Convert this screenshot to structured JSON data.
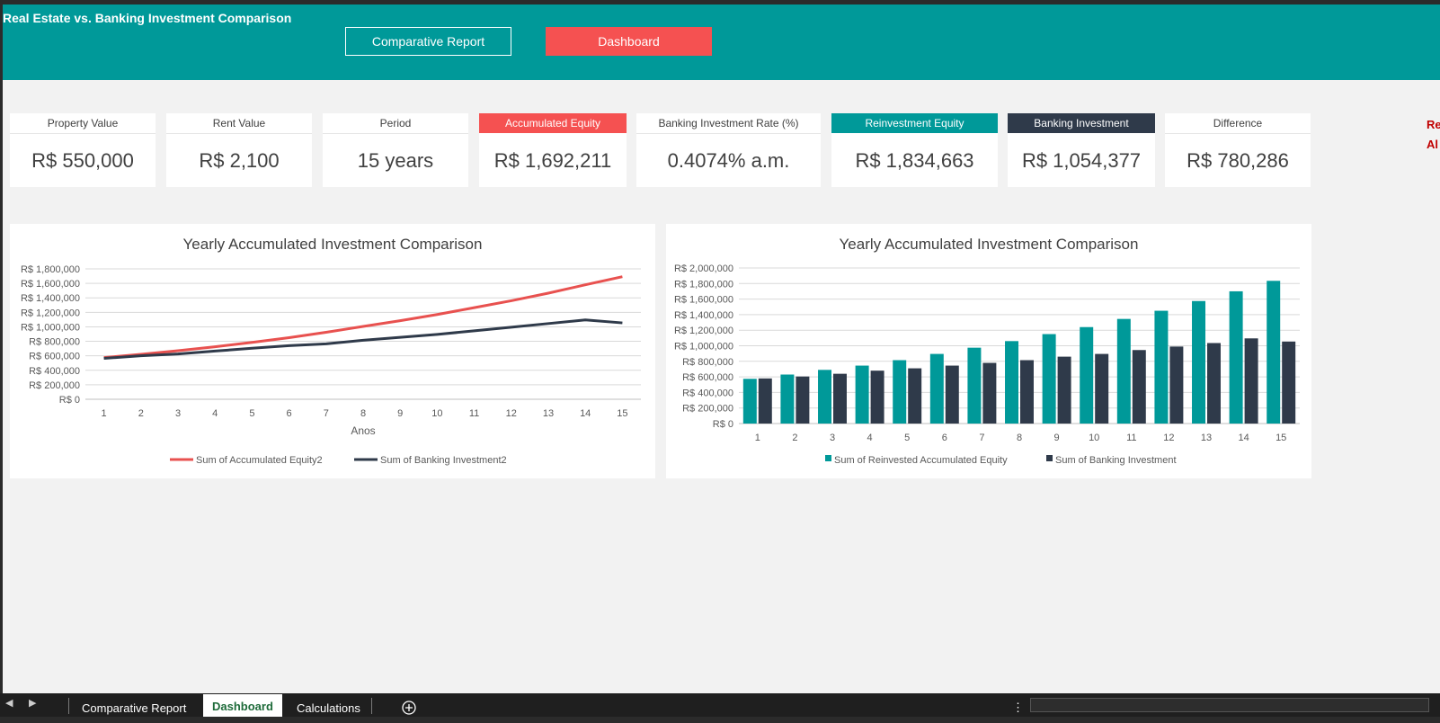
{
  "title": "Real Estate vs. Banking Investment Comparison",
  "nav": {
    "report": "Comparative Report",
    "dashboard": "Dashboard"
  },
  "kpis": [
    {
      "label": "Property Value",
      "value": "R$ 550,000"
    },
    {
      "label": "Rent Value",
      "value": "R$ 2,100"
    },
    {
      "label": "Period",
      "value": "15 years"
    },
    {
      "label": "Accumulated Equity",
      "value": "R$ 1,692,211"
    },
    {
      "label": "Banking Investment Rate (%)",
      "value": "0.4074% a.m."
    },
    {
      "label": "Reinvestment Equity",
      "value": "R$ 1,834,663"
    },
    {
      "label": "Banking Investment",
      "value": "R$ 1,054,377"
    },
    {
      "label": "Difference",
      "value": "R$ 780,286"
    }
  ],
  "side_text": [
    "Re",
    "Al"
  ],
  "colors": {
    "header": "#009999",
    "accent_red": "#f55151",
    "teal": "#009999",
    "dark": "#2f3a4a"
  },
  "chart_data": [
    {
      "type": "line",
      "title": "Yearly Accumulated Investment Comparison",
      "xlabel": "Anos",
      "ylabel": "",
      "x": [
        1,
        2,
        3,
        4,
        5,
        6,
        7,
        8,
        9,
        10,
        11,
        12,
        13,
        14,
        15
      ],
      "ylim": [
        0,
        1800000
      ],
      "yticks": [
        "R$ 0",
        "R$ 200,000",
        "R$ 400,000",
        "R$ 600,000",
        "R$ 800,000",
        "R$ 1,000,000",
        "R$ 1,200,000",
        "R$ 1,400,000",
        "R$ 1,600,000",
        "R$ 1,800,000"
      ],
      "legend_position": "bottom",
      "series": [
        {
          "name": "Sum of Accumulated Equity2",
          "color": "#e8514f",
          "values": [
            575000,
            620000,
            670000,
            725000,
            785000,
            850000,
            925000,
            1005000,
            1085000,
            1170000,
            1265000,
            1360000,
            1465000,
            1580000,
            1692211
          ]
        },
        {
          "name": "Sum of Banking Investment2",
          "color": "#2f3a4a",
          "values": [
            565000,
            600000,
            625000,
            665000,
            705000,
            740000,
            765000,
            815000,
            855000,
            895000,
            945000,
            995000,
            1045000,
            1095000,
            1054377
          ]
        }
      ]
    },
    {
      "type": "bar",
      "title": "Yearly Accumulated Investment Comparison",
      "xlabel": "",
      "ylabel": "",
      "categories": [
        "1",
        "2",
        "3",
        "4",
        "5",
        "6",
        "7",
        "8",
        "9",
        "10",
        "11",
        "12",
        "13",
        "14",
        "15"
      ],
      "ylim": [
        0,
        2000000
      ],
      "yticks": [
        "R$ 0",
        "R$ 200,000",
        "R$ 400,000",
        "R$ 600,000",
        "R$ 800,000",
        "R$ 1,000,000",
        "R$ 1,200,000",
        "R$ 1,400,000",
        "R$ 1,600,000",
        "R$ 1,800,000",
        "R$ 2,000,000"
      ],
      "legend_position": "bottom",
      "series": [
        {
          "name": "Sum of Reinvested Accumulated Equity",
          "color": "#009999",
          "values": [
            575000,
            630000,
            690000,
            745000,
            815000,
            895000,
            975000,
            1060000,
            1150000,
            1240000,
            1345000,
            1450000,
            1575000,
            1700000,
            1834663
          ]
        },
        {
          "name": "Sum of Banking Investment",
          "color": "#2f3a4a",
          "values": [
            580000,
            605000,
            640000,
            680000,
            710000,
            745000,
            780000,
            815000,
            860000,
            895000,
            945000,
            990000,
            1035000,
            1095000,
            1054377
          ]
        }
      ]
    }
  ],
  "sheet_tabs": [
    "Comparative Report",
    "Dashboard",
    "Calculations"
  ],
  "icons": {
    "prev": "triangle-left-icon",
    "next": "triangle-right-icon",
    "add": "plus-circle-icon",
    "more": "vertical-ellipsis-icon"
  }
}
